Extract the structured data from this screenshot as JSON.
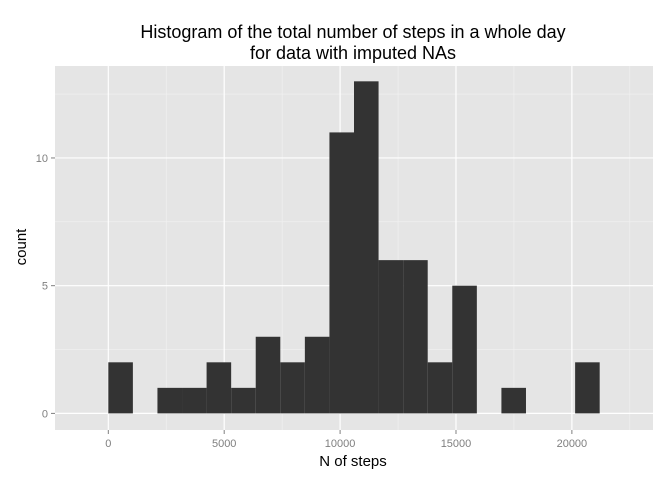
{
  "chart_data": {
    "type": "bar",
    "title_lines": [
      "Histogram of the total number of steps in a whole day",
      "for data with imputed NAs"
    ],
    "xlabel": "N of steps",
    "ylabel": "count",
    "xlim": [
      -2300,
      23500
    ],
    "ylim": [
      -0.65,
      13.6
    ],
    "x_ticks": [
      0,
      5000,
      10000,
      15000,
      20000
    ],
    "x_tick_labels": [
      "0",
      "5000",
      "10000",
      "15000",
      "20000"
    ],
    "y_ticks": [
      0,
      5,
      10
    ],
    "y_tick_labels": [
      "0",
      "5",
      "10"
    ],
    "bin_width": 1060,
    "bins": [
      {
        "x0": 0,
        "x1": 1060,
        "count": 2
      },
      {
        "x0": 1060,
        "x1": 2120,
        "count": 0
      },
      {
        "x0": 2120,
        "x1": 3180,
        "count": 1
      },
      {
        "x0": 3180,
        "x1": 4240,
        "count": 1
      },
      {
        "x0": 4240,
        "x1": 5300,
        "count": 2
      },
      {
        "x0": 5300,
        "x1": 6360,
        "count": 1
      },
      {
        "x0": 6360,
        "x1": 7420,
        "count": 3
      },
      {
        "x0": 7420,
        "x1": 8480,
        "count": 2
      },
      {
        "x0": 8480,
        "x1": 9540,
        "count": 3
      },
      {
        "x0": 9540,
        "x1": 10600,
        "count": 11
      },
      {
        "x0": 10600,
        "x1": 11660,
        "count": 13
      },
      {
        "x0": 11660,
        "x1": 12720,
        "count": 6
      },
      {
        "x0": 12720,
        "x1": 13780,
        "count": 6
      },
      {
        "x0": 13780,
        "x1": 14840,
        "count": 2
      },
      {
        "x0": 14840,
        "x1": 15900,
        "count": 5
      },
      {
        "x0": 15900,
        "x1": 16960,
        "count": 0
      },
      {
        "x0": 16960,
        "x1": 18020,
        "count": 1
      },
      {
        "x0": 18020,
        "x1": 19080,
        "count": 0
      },
      {
        "x0": 19080,
        "x1": 20140,
        "count": 0
      },
      {
        "x0": 20140,
        "x1": 21200,
        "count": 2
      }
    ],
    "grid": true,
    "colors": {
      "panel_background": "#e5e5e5",
      "major_grid": "#ffffff",
      "minor_grid": "#f2f2f2",
      "bar_fill": "#333333",
      "tick_label": "#7f7f7f"
    }
  }
}
